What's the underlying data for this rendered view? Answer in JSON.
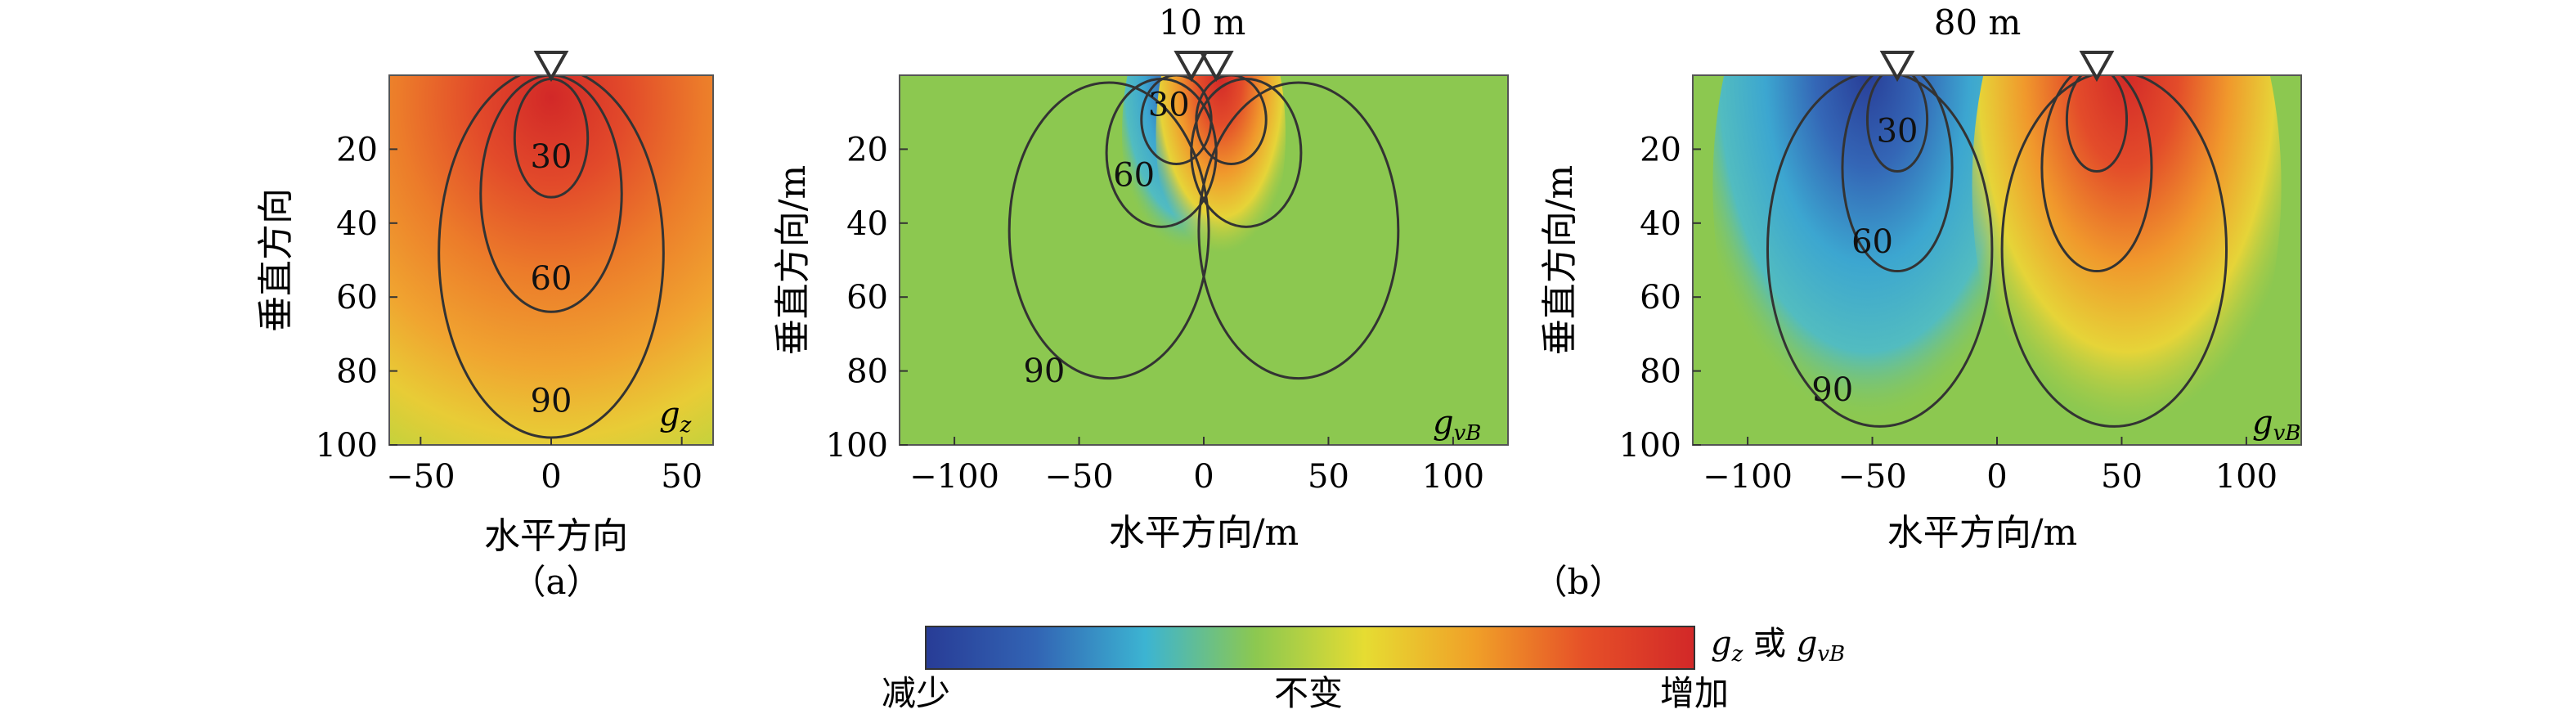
{
  "panel_labels": {
    "a": "（a）",
    "b": "（b）"
  },
  "colorbar": {
    "label_main": "g",
    "label_main_sub": "z",
    "label_or": " 或 ",
    "label_alt": "g",
    "label_alt_sub": "vB",
    "tick_low": "减少",
    "tick_mid": "不变",
    "tick_high": "增加",
    "stops": [
      "#283c96",
      "#3264b4",
      "#3cb4d2",
      "#8cc850",
      "#e6dc32",
      "#f0a028",
      "#e65028",
      "#d22828"
    ]
  },
  "chart_data": [
    {
      "type": "heatmap",
      "title": "",
      "xlabel": "水平方向",
      "ylabel": "垂直方向",
      "xlim": [
        -62,
        62
      ],
      "ylim": [
        0,
        100
      ],
      "xticks": [
        -50,
        0,
        50
      ],
      "yticks": [
        20,
        40,
        60,
        80,
        100
      ],
      "y_inverted": true,
      "field": "gz",
      "field_label": "g",
      "field_label_sub": "z",
      "sensors": [
        0
      ],
      "contours": [
        {
          "level": "30",
          "label_x": 0,
          "label_y": 25,
          "shape": "ellipse",
          "center": [
            0,
            17
          ],
          "radii": [
            14,
            16
          ]
        },
        {
          "level": "60",
          "label_x": 0,
          "label_y": 58,
          "shape": "ellipse",
          "center": [
            0,
            32
          ],
          "radii": [
            27,
            32
          ]
        },
        {
          "level": "90",
          "label_x": 0,
          "label_y": 91,
          "shape": "ellipse",
          "center": [
            0,
            48
          ],
          "radii": [
            43,
            50
          ]
        }
      ]
    },
    {
      "type": "heatmap",
      "title": "10 m",
      "xlabel": "水平方向/m",
      "ylabel": "垂直方向/m",
      "xlim": [
        -122,
        122
      ],
      "ylim": [
        0,
        100
      ],
      "xticks": [
        -100,
        -50,
        0,
        50,
        100
      ],
      "yticks": [
        20,
        40,
        60,
        80,
        100
      ],
      "y_inverted": true,
      "field": "gvB",
      "field_label": "g",
      "field_label_sub": "vB",
      "sensors": [
        -5,
        5
      ],
      "separation": "10 m",
      "contours": [
        {
          "level": "30",
          "label_x": -14,
          "label_y": 11,
          "shape": "ellipse",
          "center": [
            -11,
            12
          ],
          "radii": [
            14,
            12
          ]
        },
        {
          "level": "60",
          "label_x": -28,
          "label_y": 30,
          "shape": "ellipse",
          "center": [
            -17,
            21
          ],
          "radii": [
            22,
            20
          ]
        },
        {
          "level": "90",
          "label_x": -64,
          "label_y": 83,
          "shape": "ellipse",
          "center": [
            -38,
            42
          ],
          "radii": [
            40,
            40
          ]
        }
      ]
    },
    {
      "type": "heatmap",
      "title": "80 m",
      "xlabel": "水平方向/m",
      "ylabel": "垂直方向/m",
      "xlim": [
        -122,
        122
      ],
      "ylim": [
        0,
        100
      ],
      "xticks": [
        -100,
        -50,
        0,
        50,
        100
      ],
      "yticks": [
        20,
        40,
        60,
        80,
        100
      ],
      "y_inverted": true,
      "field": "gvB",
      "field_label": "g",
      "field_label_sub": "vB",
      "sensors": [
        -40,
        40
      ],
      "separation": "80 m",
      "contours": [
        {
          "level": "30",
          "label_x": -40,
          "label_y": 18,
          "shape": "ellipse",
          "center": [
            -40,
            12
          ],
          "radii": [
            12,
            14
          ]
        },
        {
          "level": "60",
          "label_x": -50,
          "label_y": 48,
          "shape": "ellipse",
          "center": [
            -40,
            25
          ],
          "radii": [
            22,
            28
          ]
        },
        {
          "level": "90",
          "label_x": -66,
          "label_y": 88,
          "shape": "ellipse",
          "center": [
            -47,
            47
          ],
          "radii": [
            45,
            48
          ]
        }
      ]
    }
  ]
}
